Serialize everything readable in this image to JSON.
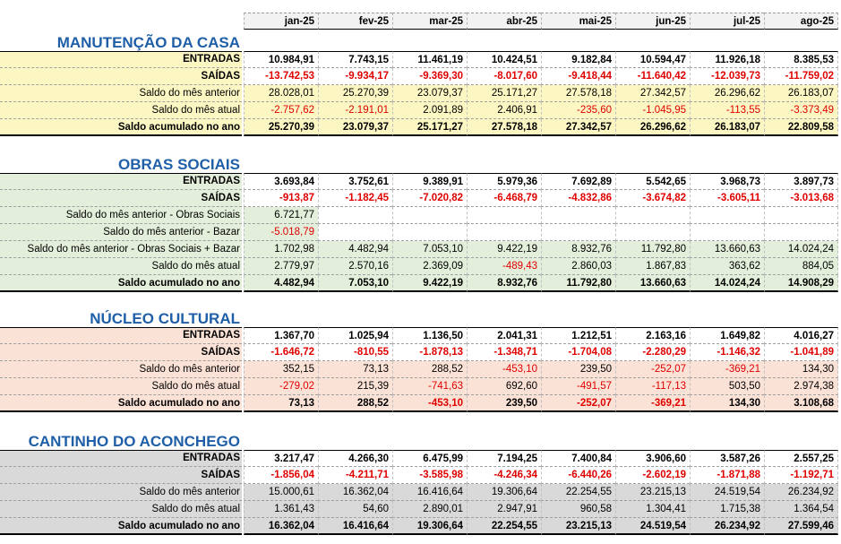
{
  "months": [
    "jan-25",
    "fev-25",
    "mar-25",
    "abr-25",
    "mai-25",
    "jun-25",
    "jul-25",
    "ago-25"
  ],
  "sections": [
    {
      "title": "MANUTENÇÃO DA CASA",
      "color": "#fcf7c2",
      "rows": [
        {
          "label": "ENTRADAS",
          "bold": true,
          "values": [
            "10.984,91",
            "7.743,15",
            "11.461,19",
            "10.424,51",
            "9.182,84",
            "10.594,47",
            "11.926,18",
            "8.385,53"
          ]
        },
        {
          "label": "SAÍDAS",
          "bold": true,
          "values": [
            "-13.742,53",
            "-9.934,17",
            "-9.369,30",
            "-8.017,60",
            "-9.418,44",
            "-11.640,42",
            "-12.039,73",
            "-11.759,02"
          ]
        },
        {
          "label": "Saldo do mês anterior",
          "bold": false,
          "values": [
            "28.028,01",
            "25.270,39",
            "23.079,37",
            "25.171,27",
            "27.578,18",
            "27.342,57",
            "26.296,62",
            "26.183,07"
          ]
        },
        {
          "label": "Saldo do mês atual",
          "bold": false,
          "values": [
            "-2.757,62",
            "-2.191,01",
            "2.091,89",
            "2.406,91",
            "-235,60",
            "-1.045,95",
            "-113,55",
            "-3.373,49"
          ]
        },
        {
          "label": "Saldo acumulado no ano",
          "bold": true,
          "values": [
            "25.270,39",
            "23.079,37",
            "25.171,27",
            "27.578,18",
            "27.342,57",
            "26.296,62",
            "26.183,07",
            "22.809,58"
          ]
        }
      ]
    },
    {
      "title": "OBRAS SOCIAIS",
      "color": "#e3efda",
      "rows": [
        {
          "label": "ENTRADAS",
          "bold": true,
          "values": [
            "3.693,84",
            "3.752,61",
            "9.389,91",
            "5.979,36",
            "7.692,89",
            "5.542,65",
            "3.968,73",
            "3.897,73"
          ]
        },
        {
          "label": "SAÍDAS",
          "bold": true,
          "values": [
            "-913,87",
            "-1.182,45",
            "-7.020,82",
            "-6.468,79",
            "-4.832,86",
            "-3.674,82",
            "-3.605,11",
            "-3.013,68"
          ]
        },
        {
          "label": "Saldo do mês anterior - Obras Sociais",
          "bold": false,
          "values": [
            "6.721,77",
            "",
            "",
            "",
            "",
            "",
            "",
            ""
          ]
        },
        {
          "label": "Saldo do mês anterior - Bazar",
          "bold": false,
          "values": [
            "-5.018,79",
            "",
            "",
            "",
            "",
            "",
            "",
            ""
          ]
        },
        {
          "label": "Saldo do mês anterior - Obras Sociais + Bazar",
          "bold": false,
          "values": [
            "1.702,98",
            "4.482,94",
            "7.053,10",
            "9.422,19",
            "8.932,76",
            "11.792,80",
            "13.660,63",
            "14.024,24"
          ]
        },
        {
          "label": "Saldo do mês atual",
          "bold": false,
          "values": [
            "2.779,97",
            "2.570,16",
            "2.369,09",
            "-489,43",
            "2.860,03",
            "1.867,83",
            "363,62",
            "884,05"
          ]
        },
        {
          "label": "Saldo acumulado no ano",
          "bold": true,
          "values": [
            "4.482,94",
            "7.053,10",
            "9.422,19",
            "8.932,76",
            "11.792,80",
            "13.660,63",
            "14.024,24",
            "14.908,29"
          ]
        }
      ]
    },
    {
      "title": "NÚCLEO CULTURAL",
      "color": "#fbe2d6",
      "rows": [
        {
          "label": "ENTRADAS",
          "bold": true,
          "values": [
            "1.367,70",
            "1.025,94",
            "1.136,50",
            "2.041,31",
            "1.212,51",
            "2.163,16",
            "1.649,82",
            "4.016,27"
          ]
        },
        {
          "label": "SAÍDAS",
          "bold": true,
          "values": [
            "-1.646,72",
            "-810,55",
            "-1.878,13",
            "-1.348,71",
            "-1.704,08",
            "-2.280,29",
            "-1.146,32",
            "-1.041,89"
          ]
        },
        {
          "label": "Saldo do mês anterior",
          "bold": false,
          "values": [
            "352,15",
            "73,13",
            "288,52",
            "-453,10",
            "239,50",
            "-252,07",
            "-369,21",
            "134,30"
          ]
        },
        {
          "label": "Saldo do mês atual",
          "bold": false,
          "values": [
            "-279,02",
            "215,39",
            "-741,63",
            "692,60",
            "-491,57",
            "-117,13",
            "503,50",
            "2.974,38"
          ]
        },
        {
          "label": "Saldo acumulado no ano",
          "bold": true,
          "values": [
            "73,13",
            "288,52",
            "-453,10",
            "239,50",
            "-252,07",
            "-369,21",
            "134,30",
            "3.108,68"
          ]
        }
      ]
    },
    {
      "title": "CANTINHO DO ACONCHEGO",
      "color": "#d9d9d9",
      "rows": [
        {
          "label": "ENTRADAS",
          "bold": true,
          "values": [
            "3.217,47",
            "4.266,30",
            "6.475,99",
            "7.194,25",
            "7.400,84",
            "3.906,60",
            "3.587,26",
            "2.557,25"
          ]
        },
        {
          "label": "SAÍDAS",
          "bold": true,
          "values": [
            "-1.856,04",
            "-4.211,71",
            "-3.585,98",
            "-4.246,34",
            "-6.440,26",
            "-2.602,19",
            "-1.871,88",
            "-1.192,71"
          ]
        },
        {
          "label": "Saldo do mês anterior",
          "bold": false,
          "values": [
            "15.000,61",
            "16.362,04",
            "16.416,64",
            "19.306,64",
            "22.254,55",
            "23.215,13",
            "24.519,54",
            "26.234,92"
          ]
        },
        {
          "label": "Saldo do mês atual",
          "bold": false,
          "values": [
            "1.361,43",
            "54,60",
            "2.890,01",
            "2.947,91",
            "960,58",
            "1.304,41",
            "1.715,38",
            "1.364,54"
          ]
        },
        {
          "label": "Saldo acumulado no ano",
          "bold": true,
          "values": [
            "16.362,04",
            "16.416,64",
            "19.306,64",
            "22.254,55",
            "23.215,13",
            "24.519,54",
            "26.234,92",
            "27.599,46"
          ]
        }
      ]
    }
  ]
}
